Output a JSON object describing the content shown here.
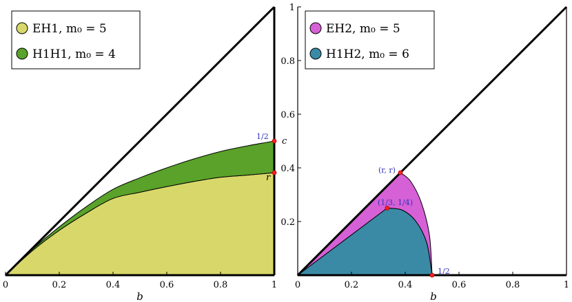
{
  "chart_data": [
    {
      "type": "area",
      "panel": "left",
      "xlabel": "b",
      "ylabel": "",
      "xlim": [
        0,
        1
      ],
      "ylim": [
        0,
        1
      ],
      "x_ticks": [
        "0",
        "0.2",
        "0.4",
        "0.6",
        "0.8",
        "1"
      ],
      "legend_position": "top-left",
      "series": [
        {
          "name": "EH1,  m₀ = 5",
          "color": "#d8d86a",
          "x": [
            0,
            0.1,
            0.2,
            0.3,
            0.4,
            0.5,
            0.6,
            0.7,
            0.8,
            0.9,
            1.0
          ],
          "y": [
            0,
            0.091,
            0.167,
            0.231,
            0.286,
            0.309,
            0.33,
            0.349,
            0.365,
            0.373,
            0.382
          ]
        },
        {
          "name": "H1H1,  m₀ = 4",
          "color": "#5aa22a",
          "x": [
            0,
            0.1,
            0.2,
            0.3,
            0.4,
            0.5,
            0.6,
            0.7,
            0.8,
            0.9,
            1.0
          ],
          "y": [
            0,
            0.096,
            0.18,
            0.255,
            0.32,
            0.363,
            0.4,
            0.433,
            0.461,
            0.482,
            0.5
          ]
        }
      ],
      "points": [
        {
          "x": 1,
          "y": 0.5,
          "label": "1/2",
          "key": "c"
        },
        {
          "x": 1,
          "y": 0.382,
          "label": "",
          "key": "r"
        }
      ]
    },
    {
      "type": "area",
      "panel": "right",
      "xlabel": "b",
      "ylabel": "",
      "xlim": [
        0,
        1
      ],
      "ylim": [
        0,
        1
      ],
      "x_ticks": [
        "0",
        "0.2",
        "0.4",
        "0.6",
        "0.8",
        "1"
      ],
      "y_ticks": [
        "0",
        "0.2",
        "0.4",
        "0.6",
        "0.8",
        "1"
      ],
      "legend_position": "top-left",
      "series": [
        {
          "name": "EH2,  m₀ = 5",
          "color": "#d660d6",
          "x": [
            0,
            0.382,
            0.42,
            0.46,
            0.49,
            0.5,
            0.48,
            0.44,
            0.39,
            0.333
          ],
          "y": [
            0,
            0.382,
            0.35,
            0.27,
            0.15,
            0,
            0.12,
            0.2,
            0.242,
            0.25
          ]
        },
        {
          "name": "H1H2,  m₀ = 6",
          "color": "#3a8aa6",
          "x": [
            0,
            0.333,
            0.39,
            0.44,
            0.48,
            0.5
          ],
          "y": [
            0,
            0.25,
            0.242,
            0.2,
            0.12,
            0
          ]
        }
      ],
      "points": [
        {
          "x": 0.382,
          "y": 0.382,
          "label": "(r, r)"
        },
        {
          "x": 0.333,
          "y": 0.25,
          "label": "(1/3, 1/4)"
        },
        {
          "x": 0.5,
          "y": 0,
          "label": "1/2"
        }
      ]
    }
  ],
  "legend": {
    "left": [
      {
        "label": "EH1,  m₀ = 5",
        "color": "#d8d86a"
      },
      {
        "label": "H1H1,  m₀ = 4",
        "color": "#5aa22a"
      }
    ],
    "right": [
      {
        "label": "EH2,  m₀ = 5",
        "color": "#d660d6"
      },
      {
        "label": "H1H2,  m₀ = 6",
        "color": "#3a8aa6"
      }
    ]
  }
}
